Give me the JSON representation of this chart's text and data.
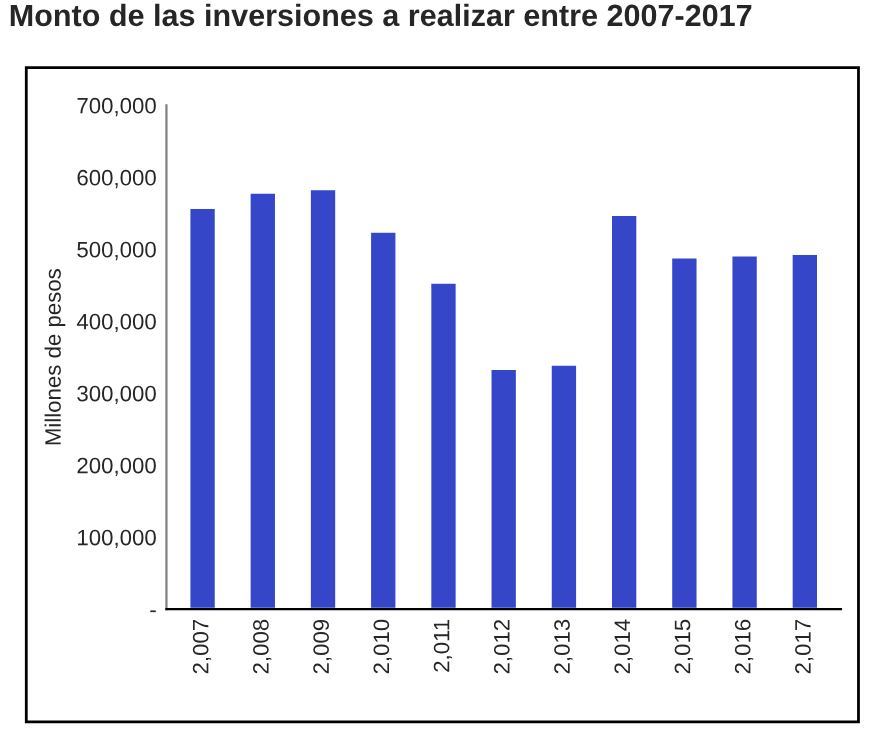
{
  "chart_data": {
    "type": "bar",
    "title": "Monto de las inversiones a realizar entre 2007-2017",
    "ylabel": "Millones de pesos",
    "categories": [
      "2,007",
      "2,008",
      "2,009",
      "2,010",
      "2,011",
      "2,012",
      "2,013",
      "2,014",
      "2,015",
      "2,016",
      "2,017"
    ],
    "values": [
      558000,
      579000,
      584000,
      525000,
      454000,
      334000,
      340000,
      548000,
      489000,
      492000,
      494000
    ],
    "color": "#3546c8",
    "ylim": [
      0,
      700000
    ],
    "yticks": [
      {
        "value": 0,
        "label": "-"
      },
      {
        "value": 100000,
        "label": "100,000"
      },
      {
        "value": 200000,
        "label": "200,000"
      },
      {
        "value": 300000,
        "label": "300,000"
      },
      {
        "value": 400000,
        "label": "400,000"
      },
      {
        "value": 500000,
        "label": "500,000"
      },
      {
        "value": 600000,
        "label": "600,000"
      },
      {
        "value": 700000,
        "label": "700,000"
      }
    ],
    "grid": false,
    "legend": false
  }
}
